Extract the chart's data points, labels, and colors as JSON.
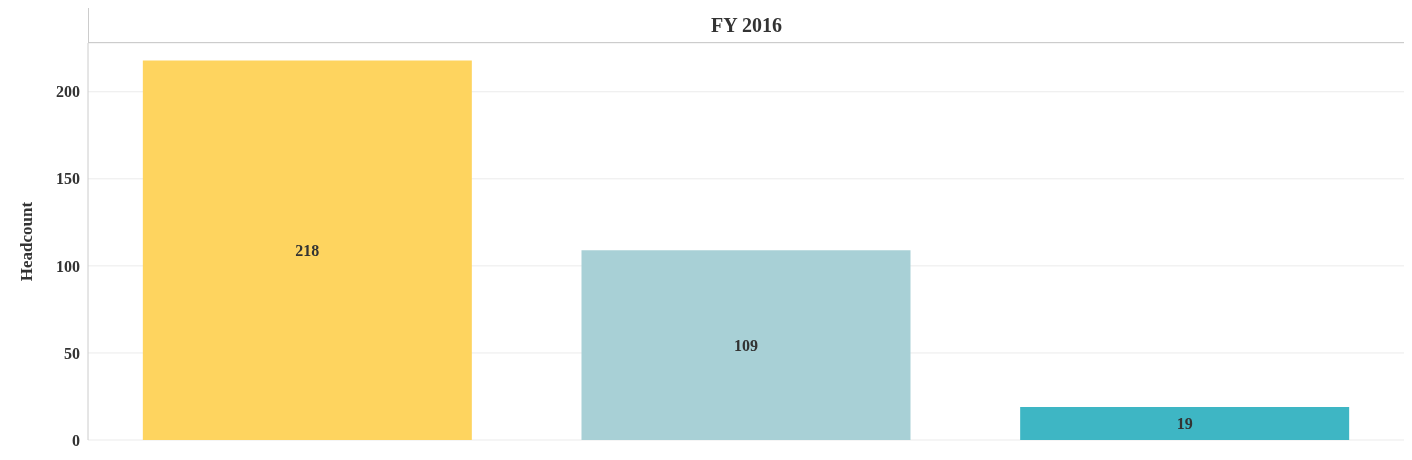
{
  "chart_data": {
    "type": "bar",
    "title": "FY 2016",
    "ylabel": "Headcount",
    "categories": [
      null,
      null,
      null
    ],
    "values": [
      218,
      109,
      19
    ],
    "colors": [
      "#fed45f",
      "#a8d0d6",
      "#3eb6c4"
    ],
    "ylim": [
      0,
      228
    ],
    "yticks": [
      0,
      50,
      100,
      150,
      200
    ],
    "grid": "y",
    "data_labels": true
  }
}
